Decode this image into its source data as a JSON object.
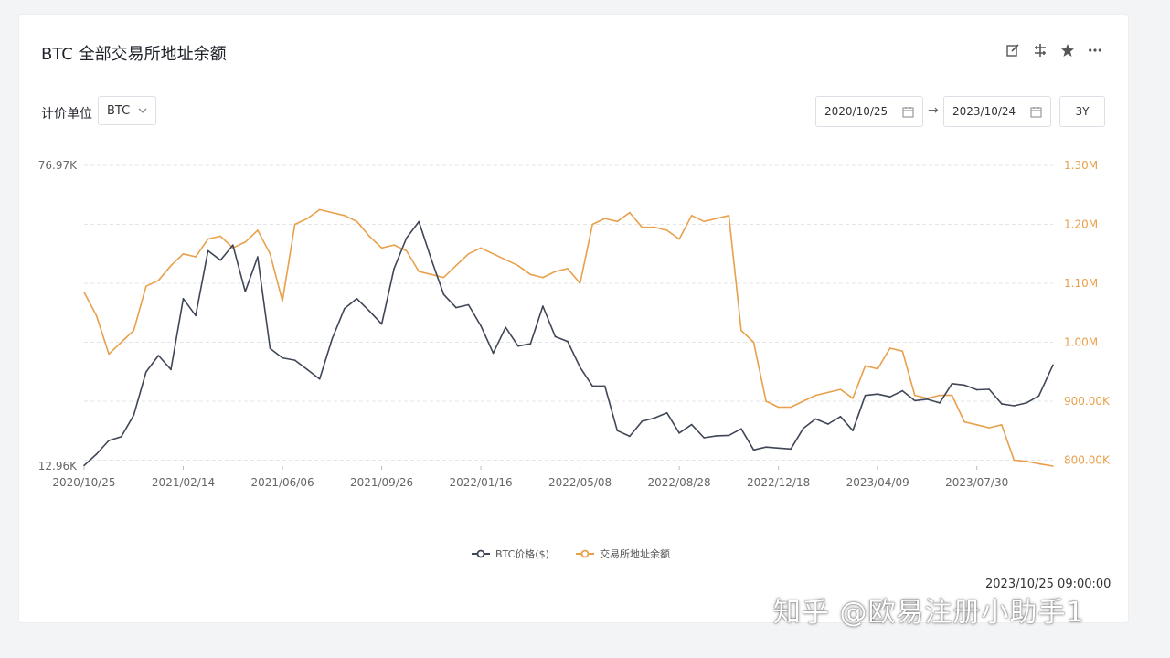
{
  "header": {
    "title": "BTC 全部交易所地址余额",
    "icons": [
      "edit-icon",
      "split-icon",
      "star-icon",
      "more-icon"
    ]
  },
  "controls": {
    "unit_label": "计价单位",
    "unit_value": "BTC",
    "start_date": "2020/10/25",
    "end_date": "2023/10/24",
    "range_button": "3Y"
  },
  "footer": {
    "timestamp": "2023/10/25 09:00:00",
    "watermark": "知乎 @欧易注册小助手1"
  },
  "colors": {
    "price": "#3f4656",
    "balance": "#e8a04c",
    "grid": "#e3e5e9",
    "axis_text": "#666666"
  },
  "chart_data": {
    "type": "line",
    "title": "BTC 全部交易所地址余额",
    "x_tick_labels": [
      "2020/10/25",
      "2021/02/14",
      "2021/06/06",
      "2021/09/26",
      "2022/01/16",
      "2022/05/08",
      "2022/08/28",
      "2022/12/18",
      "2023/04/09",
      "2023/07/30"
    ],
    "y_left_labels": [
      "76.97K",
      "12.96K"
    ],
    "y_left_range": [
      12960,
      76970
    ],
    "y_right_labels": [
      "1.30M",
      "1.20M",
      "1.10M",
      "1.00M",
      "900.00K",
      "800.00K"
    ],
    "y_right_range": [
      790000,
      1300000
    ],
    "grid": true,
    "legend_position": "bottom",
    "series": [
      {
        "name": "BTC价格($)",
        "axis": "left",
        "x": [
          "2020/10/25",
          "2020/11/08",
          "2020/11/22",
          "2020/12/06",
          "2020/12/20",
          "2021/01/03",
          "2021/01/17",
          "2021/01/31",
          "2021/02/14",
          "2021/02/28",
          "2021/03/14",
          "2021/03/28",
          "2021/04/11",
          "2021/04/25",
          "2021/05/09",
          "2021/05/23",
          "2021/06/06",
          "2021/06/20",
          "2021/07/04",
          "2021/07/18",
          "2021/08/01",
          "2021/08/15",
          "2021/08/29",
          "2021/09/12",
          "2021/09/26",
          "2021/10/10",
          "2021/10/24",
          "2021/11/07",
          "2021/11/21",
          "2021/12/05",
          "2021/12/19",
          "2022/01/02",
          "2022/01/16",
          "2022/01/30",
          "2022/02/13",
          "2022/02/27",
          "2022/03/13",
          "2022/03/27",
          "2022/04/10",
          "2022/04/24",
          "2022/05/08",
          "2022/05/22",
          "2022/06/05",
          "2022/06/19",
          "2022/07/03",
          "2022/07/17",
          "2022/07/31",
          "2022/08/14",
          "2022/08/28",
          "2022/09/11",
          "2022/09/25",
          "2022/10/09",
          "2022/10/23",
          "2022/11/06",
          "2022/11/20",
          "2022/12/04",
          "2022/12/18",
          "2023/01/01",
          "2023/01/15",
          "2023/01/29",
          "2023/02/12",
          "2023/02/26",
          "2023/03/12",
          "2023/03/26",
          "2023/04/09",
          "2023/04/23",
          "2023/05/07",
          "2023/05/21",
          "2023/06/04",
          "2023/06/18",
          "2023/07/02",
          "2023/07/16",
          "2023/07/30",
          "2023/08/13",
          "2023/08/27",
          "2023/09/10",
          "2023/09/24",
          "2023/10/08",
          "2023/10/24"
        ],
        "y": [
          13100,
          15500,
          18400,
          19200,
          23800,
          33000,
          36500,
          33500,
          48600,
          45000,
          58800,
          56800,
          60000,
          50100,
          57500,
          38000,
          36000,
          35500,
          33500,
          31500,
          40000,
          46500,
          48600,
          46000,
          43200,
          55000,
          61500,
          65000,
          57000,
          49500,
          46700,
          47300,
          42800,
          37000,
          42500,
          38500,
          39000,
          47000,
          40500,
          39500,
          34000,
          30000,
          30000,
          20500,
          19300,
          22500,
          23200,
          24300,
          20000,
          21800,
          19000,
          19400,
          19500,
          20900,
          16400,
          17000,
          16800,
          16600,
          21000,
          23000,
          21900,
          23500,
          20500,
          28000,
          28300,
          27700,
          29000,
          26900,
          27200,
          26400,
          30500,
          30200,
          29200,
          29300,
          26200,
          25800,
          26400,
          27900,
          34500
        ]
      },
      {
        "name": "交易所地址余额",
        "axis": "right",
        "x": [
          "2020/10/25",
          "2020/11/08",
          "2020/11/22",
          "2020/12/06",
          "2020/12/20",
          "2021/01/03",
          "2021/01/17",
          "2021/01/31",
          "2021/02/14",
          "2021/02/28",
          "2021/03/14",
          "2021/03/28",
          "2021/04/11",
          "2021/04/25",
          "2021/05/09",
          "2021/05/23",
          "2021/06/06",
          "2021/06/20",
          "2021/07/04",
          "2021/07/18",
          "2021/08/01",
          "2021/08/15",
          "2021/08/29",
          "2021/09/12",
          "2021/09/26",
          "2021/10/10",
          "2021/10/24",
          "2021/11/07",
          "2021/11/21",
          "2021/12/05",
          "2021/12/19",
          "2022/01/02",
          "2022/01/16",
          "2022/01/30",
          "2022/02/13",
          "2022/02/27",
          "2022/03/13",
          "2022/03/27",
          "2022/04/10",
          "2022/04/24",
          "2022/05/08",
          "2022/05/22",
          "2022/06/05",
          "2022/06/19",
          "2022/07/03",
          "2022/07/17",
          "2022/07/31",
          "2022/08/14",
          "2022/08/28",
          "2022/09/11",
          "2022/09/25",
          "2022/10/09",
          "2022/10/23",
          "2022/11/06",
          "2022/11/20",
          "2022/12/04",
          "2022/12/18",
          "2023/01/01",
          "2023/01/15",
          "2023/01/29",
          "2023/02/12",
          "2023/02/26",
          "2023/03/12",
          "2023/03/26",
          "2023/04/09",
          "2023/04/23",
          "2023/05/07",
          "2023/05/21",
          "2023/06/04",
          "2023/06/18",
          "2023/07/02",
          "2023/07/16",
          "2023/07/30",
          "2023/08/13",
          "2023/08/27",
          "2023/09/10",
          "2023/09/24",
          "2023/10/08",
          "2023/10/24"
        ],
        "y": [
          1085000,
          1045000,
          980000,
          1000000,
          1020000,
          1095000,
          1105000,
          1130000,
          1150000,
          1145000,
          1175000,
          1180000,
          1160000,
          1170000,
          1190000,
          1150000,
          1070000,
          1200000,
          1210000,
          1225000,
          1220000,
          1215000,
          1205000,
          1180000,
          1160000,
          1165000,
          1155000,
          1120000,
          1115000,
          1110000,
          1130000,
          1150000,
          1160000,
          1150000,
          1140000,
          1130000,
          1115000,
          1110000,
          1120000,
          1125000,
          1100000,
          1200000,
          1210000,
          1205000,
          1220000,
          1195000,
          1195000,
          1190000,
          1175000,
          1215000,
          1205000,
          1210000,
          1215000,
          1020000,
          1000000,
          900000,
          890000,
          890000,
          900000,
          910000,
          915000,
          920000,
          905000,
          960000,
          955000,
          990000,
          985000,
          910000,
          905000,
          910000,
          910000,
          865000,
          860000,
          855000,
          860000,
          800000,
          798000,
          794000,
          790000
        ]
      }
    ]
  }
}
